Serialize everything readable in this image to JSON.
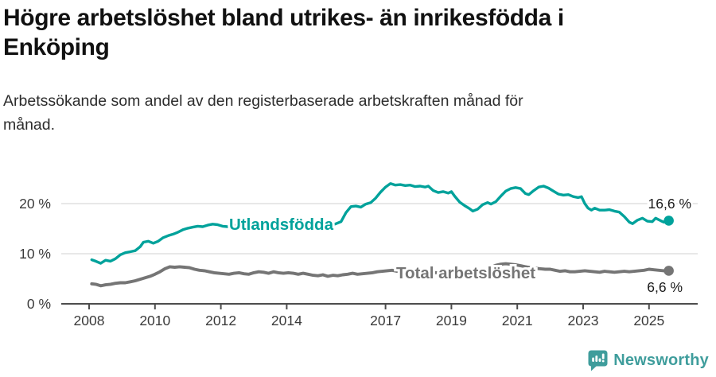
{
  "header": {
    "title_lines": [
      "Högre arbetslöshet bland utrikes- än inrikesfödda i",
      "Enköping"
    ],
    "subtitle_lines": [
      "Arbetssökande som andel av den registerbaserade arbetskraften månad för",
      "månad."
    ]
  },
  "footer": {
    "brand": "Newsworthy",
    "brand_color": "#3f9d9c",
    "logo_icon": "newsworthy-chart-bubble-icon"
  },
  "chart_data": {
    "type": "line",
    "title": "Högre arbetslöshet bland utrikes- än inrikesfödda i Enköping",
    "subtitle": "Arbetssökande som andel av den registerbaserade arbetskraften månad för månad.",
    "grid": "horizontal",
    "legend": "inline-labels",
    "x_axis": {
      "min": 2008,
      "max": 2025.7,
      "ticks": [
        2008,
        2010,
        2012,
        2014,
        2017,
        2019,
        2021,
        2023,
        2025
      ],
      "tick_labels": [
        "2008",
        "2010",
        "2012",
        "2014",
        "2017",
        "2019",
        "2021",
        "2023",
        "2025"
      ]
    },
    "y_axis": {
      "min": 0,
      "max": 25,
      "unit": "%",
      "ticks": [
        0,
        10,
        20
      ],
      "tick_labels": [
        "0 %",
        "10 %",
        "20 %"
      ]
    },
    "series": [
      {
        "name": "Utlandsfödda",
        "color": "#00a29b",
        "end_value": 16.6,
        "end_label": "16,6 %",
        "points": [
          [
            2008.08,
            8.8
          ],
          [
            2008.2,
            8.5
          ],
          [
            2008.35,
            8.1
          ],
          [
            2008.5,
            8.7
          ],
          [
            2008.65,
            8.5
          ],
          [
            2008.8,
            9.0
          ],
          [
            2008.95,
            9.8
          ],
          [
            2009.1,
            10.2
          ],
          [
            2009.25,
            10.4
          ],
          [
            2009.4,
            10.6
          ],
          [
            2009.55,
            11.4
          ],
          [
            2009.65,
            12.3
          ],
          [
            2009.8,
            12.5
          ],
          [
            2009.95,
            12.1
          ],
          [
            2010.1,
            12.5
          ],
          [
            2010.25,
            13.2
          ],
          [
            2010.4,
            13.6
          ],
          [
            2010.55,
            13.9
          ],
          [
            2010.7,
            14.3
          ],
          [
            2010.85,
            14.8
          ],
          [
            2011.0,
            15.1
          ],
          [
            2011.15,
            15.3
          ],
          [
            2011.3,
            15.5
          ],
          [
            2011.45,
            15.4
          ],
          [
            2011.6,
            15.7
          ],
          [
            2011.75,
            15.9
          ],
          [
            2011.9,
            15.8
          ],
          [
            2012.05,
            15.5
          ],
          [
            2012.2,
            15.4
          ],
          [
            2012.35,
            15.6
          ],
          [
            2012.5,
            15.7
          ],
          [
            2012.65,
            15.5
          ],
          [
            2012.8,
            15.3
          ],
          [
            2012.95,
            15.4
          ],
          [
            2013.1,
            15.5
          ],
          [
            2013.25,
            15.2
          ],
          [
            2013.4,
            15.4
          ],
          [
            2013.55,
            15.6
          ],
          [
            2013.7,
            15.7
          ],
          [
            2013.85,
            15.4
          ],
          [
            2014.0,
            15.3
          ],
          [
            2014.15,
            15.1
          ],
          [
            2014.3,
            15.0
          ],
          [
            2014.45,
            15.3
          ],
          [
            2014.6,
            15.5
          ],
          [
            2014.75,
            15.6
          ],
          [
            2014.9,
            15.4
          ],
          [
            2015.05,
            15.5
          ],
          [
            2015.2,
            15.6
          ],
          [
            2015.35,
            15.7
          ],
          [
            2015.5,
            16.0
          ],
          [
            2015.65,
            16.4
          ],
          [
            2015.8,
            18.2
          ],
          [
            2015.95,
            19.4
          ],
          [
            2016.1,
            19.5
          ],
          [
            2016.25,
            19.3
          ],
          [
            2016.4,
            19.9
          ],
          [
            2016.55,
            20.2
          ],
          [
            2016.7,
            21.1
          ],
          [
            2016.85,
            22.3
          ],
          [
            2017.0,
            23.3
          ],
          [
            2017.15,
            24.0
          ],
          [
            2017.3,
            23.7
          ],
          [
            2017.45,
            23.8
          ],
          [
            2017.6,
            23.6
          ],
          [
            2017.75,
            23.7
          ],
          [
            2017.9,
            23.4
          ],
          [
            2018.05,
            23.5
          ],
          [
            2018.2,
            23.3
          ],
          [
            2018.3,
            23.5
          ],
          [
            2018.45,
            22.6
          ],
          [
            2018.6,
            22.2
          ],
          [
            2018.75,
            22.4
          ],
          [
            2018.9,
            22.1
          ],
          [
            2019.0,
            22.4
          ],
          [
            2019.1,
            21.5
          ],
          [
            2019.25,
            20.3
          ],
          [
            2019.4,
            19.6
          ],
          [
            2019.55,
            19.0
          ],
          [
            2019.65,
            18.5
          ],
          [
            2019.8,
            18.9
          ],
          [
            2019.95,
            19.8
          ],
          [
            2020.1,
            20.2
          ],
          [
            2020.2,
            19.9
          ],
          [
            2020.35,
            20.4
          ],
          [
            2020.5,
            21.5
          ],
          [
            2020.65,
            22.5
          ],
          [
            2020.8,
            23.0
          ],
          [
            2020.95,
            23.2
          ],
          [
            2021.1,
            23.0
          ],
          [
            2021.25,
            22.0
          ],
          [
            2021.35,
            21.8
          ],
          [
            2021.5,
            22.6
          ],
          [
            2021.65,
            23.3
          ],
          [
            2021.8,
            23.5
          ],
          [
            2021.95,
            23.1
          ],
          [
            2022.1,
            22.5
          ],
          [
            2022.25,
            21.9
          ],
          [
            2022.4,
            21.7
          ],
          [
            2022.55,
            21.8
          ],
          [
            2022.7,
            21.4
          ],
          [
            2022.85,
            21.2
          ],
          [
            2022.95,
            21.4
          ],
          [
            2023.05,
            20.0
          ],
          [
            2023.15,
            19.1
          ],
          [
            2023.25,
            18.7
          ],
          [
            2023.35,
            19.1
          ],
          [
            2023.5,
            18.7
          ],
          [
            2023.65,
            18.7
          ],
          [
            2023.8,
            18.8
          ],
          [
            2023.95,
            18.5
          ],
          [
            2024.1,
            18.3
          ],
          [
            2024.25,
            17.4
          ],
          [
            2024.4,
            16.3
          ],
          [
            2024.5,
            16.0
          ],
          [
            2024.65,
            16.7
          ],
          [
            2024.8,
            17.1
          ],
          [
            2024.95,
            16.5
          ],
          [
            2025.1,
            16.4
          ],
          [
            2025.2,
            17.1
          ],
          [
            2025.35,
            16.6
          ],
          [
            2025.45,
            16.3
          ],
          [
            2025.6,
            16.6
          ]
        ]
      },
      {
        "name": "Total arbetslöshet",
        "color": "#757575",
        "end_value": 6.6,
        "end_label": "6,6 %",
        "points": [
          [
            2008.08,
            4.0
          ],
          [
            2008.2,
            3.9
          ],
          [
            2008.35,
            3.6
          ],
          [
            2008.5,
            3.8
          ],
          [
            2008.65,
            3.9
          ],
          [
            2008.8,
            4.1
          ],
          [
            2008.95,
            4.2
          ],
          [
            2009.1,
            4.2
          ],
          [
            2009.25,
            4.4
          ],
          [
            2009.4,
            4.6
          ],
          [
            2009.55,
            4.9
          ],
          [
            2009.7,
            5.2
          ],
          [
            2009.85,
            5.5
          ],
          [
            2010.0,
            5.9
          ],
          [
            2010.15,
            6.4
          ],
          [
            2010.3,
            7.0
          ],
          [
            2010.45,
            7.4
          ],
          [
            2010.6,
            7.3
          ],
          [
            2010.75,
            7.4
          ],
          [
            2010.9,
            7.3
          ],
          [
            2011.05,
            7.2
          ],
          [
            2011.2,
            6.9
          ],
          [
            2011.35,
            6.7
          ],
          [
            2011.5,
            6.6
          ],
          [
            2011.65,
            6.4
          ],
          [
            2011.8,
            6.2
          ],
          [
            2011.95,
            6.1
          ],
          [
            2012.1,
            6.0
          ],
          [
            2012.25,
            5.9
          ],
          [
            2012.4,
            6.1
          ],
          [
            2012.55,
            6.2
          ],
          [
            2012.7,
            6.0
          ],
          [
            2012.85,
            5.9
          ],
          [
            2013.0,
            6.2
          ],
          [
            2013.15,
            6.4
          ],
          [
            2013.3,
            6.3
          ],
          [
            2013.45,
            6.1
          ],
          [
            2013.6,
            6.4
          ],
          [
            2013.75,
            6.2
          ],
          [
            2013.9,
            6.1
          ],
          [
            2014.05,
            6.2
          ],
          [
            2014.2,
            6.1
          ],
          [
            2014.35,
            5.9
          ],
          [
            2014.5,
            6.1
          ],
          [
            2014.65,
            5.9
          ],
          [
            2014.8,
            5.7
          ],
          [
            2014.95,
            5.6
          ],
          [
            2015.1,
            5.8
          ],
          [
            2015.25,
            5.5
          ],
          [
            2015.4,
            5.7
          ],
          [
            2015.55,
            5.6
          ],
          [
            2015.7,
            5.8
          ],
          [
            2015.85,
            5.9
          ],
          [
            2016.0,
            6.1
          ],
          [
            2016.15,
            5.9
          ],
          [
            2016.3,
            6.0
          ],
          [
            2016.45,
            6.1
          ],
          [
            2016.6,
            6.2
          ],
          [
            2016.75,
            6.4
          ],
          [
            2016.9,
            6.5
          ],
          [
            2017.05,
            6.6
          ],
          [
            2017.2,
            6.7
          ],
          [
            2017.35,
            6.5
          ],
          [
            2017.5,
            6.4
          ],
          [
            2017.65,
            6.5
          ],
          [
            2017.8,
            6.6
          ],
          [
            2017.95,
            6.4
          ],
          [
            2018.1,
            6.5
          ],
          [
            2018.25,
            6.4
          ],
          [
            2018.4,
            6.3
          ],
          [
            2018.55,
            6.2
          ],
          [
            2018.7,
            6.3
          ],
          [
            2018.85,
            6.2
          ],
          [
            2019.0,
            6.1
          ],
          [
            2019.15,
            6.0
          ],
          [
            2019.3,
            6.1
          ],
          [
            2019.45,
            6.1
          ],
          [
            2019.6,
            6.2
          ],
          [
            2019.75,
            6.3
          ],
          [
            2019.9,
            6.3
          ],
          [
            2020.05,
            6.6
          ],
          [
            2020.2,
            7.3
          ],
          [
            2020.35,
            7.7
          ],
          [
            2020.5,
            7.9
          ],
          [
            2020.65,
            8.0
          ],
          [
            2020.8,
            7.9
          ],
          [
            2020.95,
            7.8
          ],
          [
            2021.1,
            7.6
          ],
          [
            2021.25,
            7.4
          ],
          [
            2021.4,
            7.2
          ],
          [
            2021.55,
            7.1
          ],
          [
            2021.7,
            7.0
          ],
          [
            2021.85,
            6.9
          ],
          [
            2022.0,
            6.9
          ],
          [
            2022.15,
            6.7
          ],
          [
            2022.3,
            6.5
          ],
          [
            2022.45,
            6.6
          ],
          [
            2022.6,
            6.4
          ],
          [
            2022.75,
            6.4
          ],
          [
            2022.9,
            6.5
          ],
          [
            2023.05,
            6.6
          ],
          [
            2023.2,
            6.5
          ],
          [
            2023.35,
            6.4
          ],
          [
            2023.5,
            6.3
          ],
          [
            2023.65,
            6.5
          ],
          [
            2023.8,
            6.4
          ],
          [
            2023.95,
            6.3
          ],
          [
            2024.1,
            6.4
          ],
          [
            2024.25,
            6.5
          ],
          [
            2024.4,
            6.4
          ],
          [
            2024.55,
            6.5
          ],
          [
            2024.7,
            6.6
          ],
          [
            2024.85,
            6.7
          ],
          [
            2025.0,
            6.9
          ],
          [
            2025.15,
            6.8
          ],
          [
            2025.3,
            6.7
          ],
          [
            2025.45,
            6.6
          ],
          [
            2025.6,
            6.6
          ]
        ]
      }
    ],
    "colors": {
      "axis": "#4d4d4d",
      "gridline": "#e0e0e0",
      "tick_text": "#3a3a3a",
      "annotation_text": "#1a1a1a",
      "background": "#ffffff"
    }
  }
}
